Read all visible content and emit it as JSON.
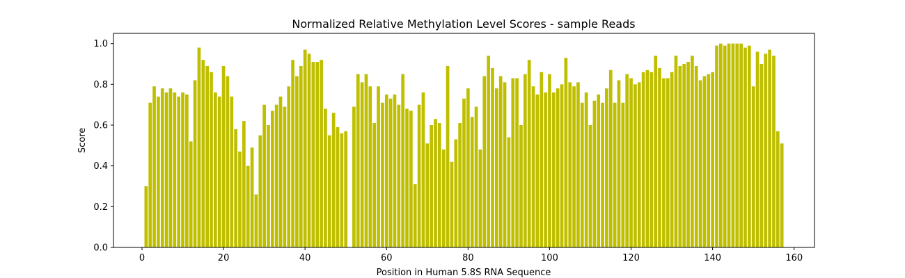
{
  "chart_data": {
    "type": "bar",
    "title": "Normalized Relative Methylation Level Scores - sample Reads",
    "xlabel": "Position in Human 5.8S RNA Sequence",
    "ylabel": "Score",
    "xlim": [
      -7,
      165
    ],
    "ylim": [
      0,
      1.05
    ],
    "xticks": [
      0,
      20,
      40,
      60,
      80,
      100,
      120,
      140,
      160
    ],
    "yticks": [
      0.0,
      0.2,
      0.4,
      0.6,
      0.8,
      1.0
    ],
    "xtick_labels": [
      "0",
      "20",
      "40",
      "60",
      "80",
      "100",
      "120",
      "140",
      "160"
    ],
    "ytick_labels": [
      "0.0",
      "0.2",
      "0.4",
      "0.6",
      "0.8",
      "1.0"
    ],
    "bar_color": "#bfbf00",
    "grid": false,
    "x": [
      1,
      2,
      3,
      4,
      5,
      6,
      7,
      8,
      9,
      10,
      11,
      12,
      13,
      14,
      15,
      16,
      17,
      18,
      19,
      20,
      21,
      22,
      23,
      24,
      25,
      26,
      27,
      28,
      29,
      30,
      31,
      32,
      33,
      34,
      35,
      36,
      37,
      38,
      39,
      40,
      41,
      42,
      43,
      44,
      45,
      46,
      47,
      48,
      49,
      50,
      52,
      53,
      54,
      55,
      56,
      57,
      58,
      59,
      60,
      61,
      62,
      63,
      64,
      65,
      66,
      67,
      68,
      69,
      70,
      71,
      72,
      73,
      74,
      75,
      76,
      77,
      78,
      79,
      80,
      81,
      82,
      83,
      84,
      85,
      86,
      87,
      88,
      89,
      90,
      91,
      92,
      93,
      94,
      95,
      96,
      97,
      98,
      99,
      100,
      101,
      102,
      103,
      104,
      105,
      106,
      107,
      108,
      109,
      110,
      111,
      112,
      113,
      114,
      115,
      116,
      117,
      118,
      119,
      120,
      121,
      122,
      123,
      124,
      125,
      126,
      127,
      128,
      129,
      130,
      131,
      132,
      133,
      134,
      135,
      136,
      137,
      138,
      139,
      140,
      141,
      142,
      143,
      144,
      145,
      146,
      147,
      148,
      149,
      150,
      151,
      152,
      153,
      154,
      155,
      156,
      157
    ],
    "values": [
      0.3,
      0.71,
      0.79,
      0.74,
      0.78,
      0.76,
      0.78,
      0.76,
      0.74,
      0.76,
      0.75,
      0.52,
      0.82,
      0.98,
      0.92,
      0.89,
      0.86,
      0.76,
      0.74,
      0.89,
      0.84,
      0.74,
      0.58,
      0.47,
      0.62,
      0.4,
      0.49,
      0.26,
      0.55,
      0.7,
      0.6,
      0.67,
      0.7,
      0.74,
      0.69,
      0.79,
      0.92,
      0.84,
      0.89,
      0.97,
      0.95,
      0.91,
      0.91,
      0.92,
      0.68,
      0.55,
      0.66,
      0.59,
      0.56,
      0.57,
      0.69,
      0.85,
      0.81,
      0.85,
      0.79,
      0.61,
      0.79,
      0.71,
      0.75,
      0.73,
      0.75,
      0.7,
      0.85,
      0.68,
      0.67,
      0.31,
      0.7,
      0.76,
      0.51,
      0.6,
      0.63,
      0.61,
      0.48,
      0.89,
      0.42,
      0.53,
      0.61,
      0.73,
      0.78,
      0.64,
      0.69,
      0.48,
      0.84,
      0.94,
      0.88,
      0.78,
      0.84,
      0.81,
      0.54,
      0.83,
      0.83,
      0.6,
      0.85,
      0.92,
      0.79,
      0.75,
      0.86,
      0.76,
      0.85,
      0.76,
      0.78,
      0.8,
      0.93,
      0.81,
      0.79,
      0.81,
      0.71,
      0.76,
      0.6,
      0.72,
      0.75,
      0.71,
      0.78,
      0.87,
      0.71,
      0.82,
      0.71,
      0.85,
      0.83,
      0.8,
      0.81,
      0.86,
      0.87,
      0.86,
      0.94,
      0.88,
      0.83,
      0.83,
      0.86,
      0.94,
      0.89,
      0.9,
      0.91,
      0.94,
      0.89,
      0.82,
      0.84,
      0.85,
      0.86,
      0.99,
      1.0,
      0.99,
      1.0,
      1.0,
      1.0,
      1.0,
      0.98,
      0.99,
      0.79,
      0.96,
      0.9,
      0.95,
      0.97,
      0.94,
      0.57,
      0.51
    ]
  }
}
